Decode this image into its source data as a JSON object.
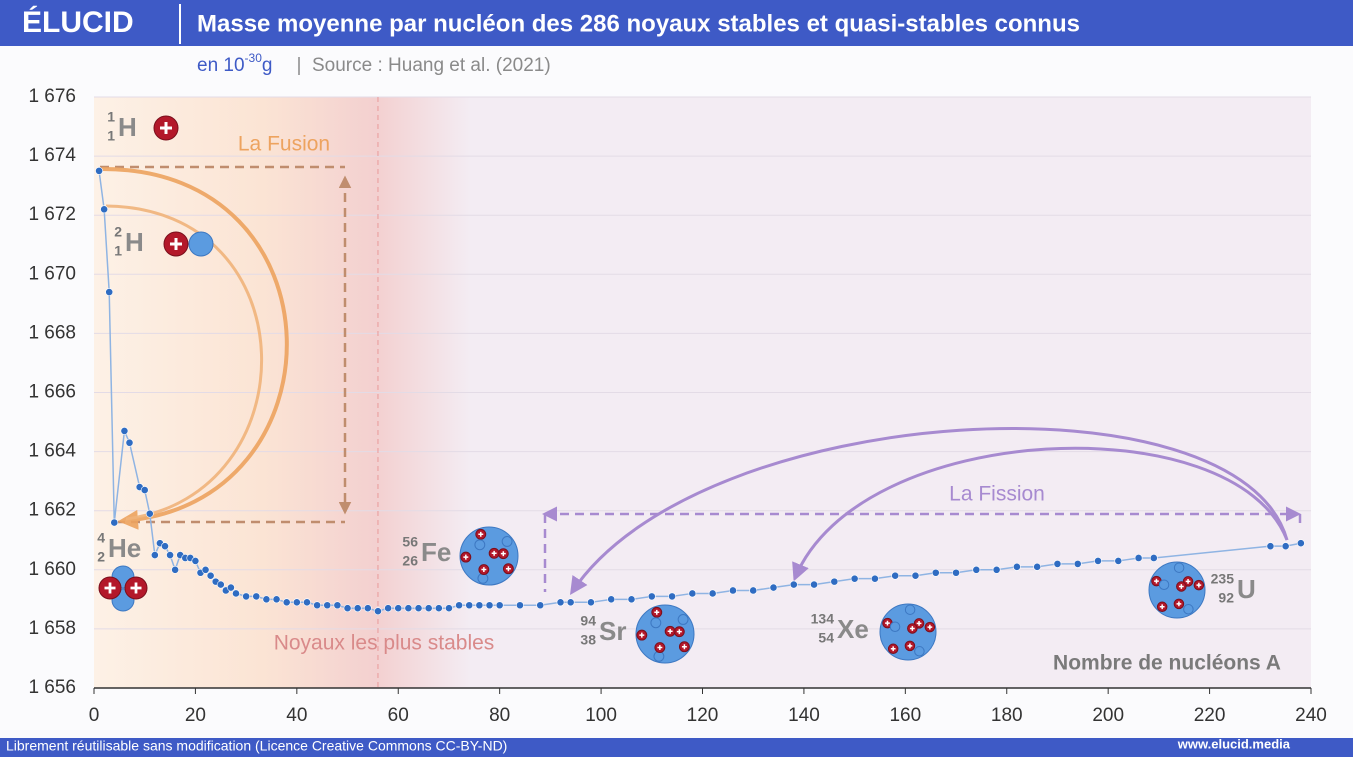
{
  "brand": "ÉLUCID",
  "footer": {
    "license": "Librement réutilisable sans modification (Licence Creative Commons CC-BY-ND)",
    "url": "www.elucid.media"
  },
  "chart_data": {
    "type": "scatter",
    "title": "Masse moyenne par nucléon des 286 noyaux stables et quasi-stables connus",
    "unit": {
      "prefix": "en 10",
      "exponent": "-30",
      "suffix": "g"
    },
    "source": "Source : Huang et al. (2021)",
    "x_label": "Nombre de nucléons A",
    "color": "#2f6cc2",
    "line_color": "#8fb4e3",
    "grid": true,
    "xlim": [
      0,
      240
    ],
    "xticks": [
      0,
      20,
      40,
      60,
      80,
      100,
      120,
      140,
      160,
      180,
      200,
      220,
      240
    ],
    "ylim": [
      1656,
      1676
    ],
    "yticks": [
      {
        "value": 1656,
        "label": "1 656"
      },
      {
        "value": 1658,
        "label": "1 658"
      },
      {
        "value": 1660,
        "label": "1 660"
      },
      {
        "value": 1662,
        "label": "1 662"
      },
      {
        "value": 1664,
        "label": "1 664"
      },
      {
        "value": 1666,
        "label": "1 666"
      },
      {
        "value": 1668,
        "label": "1 668"
      },
      {
        "value": 1670,
        "label": "1 670"
      },
      {
        "value": 1672,
        "label": "1 672"
      },
      {
        "value": 1674,
        "label": "1 674"
      },
      {
        "value": 1676,
        "label": "1 676"
      }
    ],
    "x": [
      1,
      2,
      3,
      4,
      6,
      7,
      9,
      10,
      11,
      12,
      13,
      14,
      15,
      16,
      17,
      18,
      19,
      20,
      21,
      22,
      23,
      24,
      25,
      26,
      27,
      28,
      30,
      32,
      34,
      36,
      38,
      40,
      42,
      44,
      46,
      48,
      50,
      52,
      54,
      56,
      58,
      60,
      62,
      64,
      66,
      68,
      70,
      72,
      74,
      76,
      78,
      80,
      84,
      88,
      92,
      94,
      98,
      102,
      106,
      110,
      114,
      118,
      122,
      126,
      130,
      134,
      138,
      142,
      146,
      150,
      154,
      158,
      162,
      166,
      170,
      174,
      178,
      182,
      186,
      190,
      194,
      198,
      202,
      206,
      209,
      232,
      235,
      238
    ],
    "values": [
      1673.5,
      1672.2,
      1669.4,
      1661.6,
      1664.7,
      1664.3,
      1662.8,
      1662.7,
      1661.9,
      1660.5,
      1660.9,
      1660.8,
      1660.5,
      1660.0,
      1660.5,
      1660.4,
      1660.4,
      1660.3,
      1659.9,
      1660.0,
      1659.8,
      1659.6,
      1659.5,
      1659.3,
      1659.4,
      1659.2,
      1659.1,
      1659.1,
      1659.0,
      1659.0,
      1658.9,
      1658.9,
      1658.9,
      1658.8,
      1658.8,
      1658.8,
      1658.7,
      1658.7,
      1658.7,
      1658.6,
      1658.7,
      1658.7,
      1658.7,
      1658.7,
      1658.7,
      1658.7,
      1658.7,
      1658.8,
      1658.8,
      1658.8,
      1658.8,
      1658.8,
      1658.8,
      1658.8,
      1658.9,
      1658.9,
      1658.9,
      1659.0,
      1659.0,
      1659.1,
      1659.1,
      1659.2,
      1659.2,
      1659.3,
      1659.3,
      1659.4,
      1659.5,
      1659.5,
      1659.6,
      1659.7,
      1659.7,
      1659.8,
      1659.8,
      1659.9,
      1659.9,
      1660.0,
      1660.0,
      1660.1,
      1660.1,
      1660.2,
      1660.2,
      1660.3,
      1660.3,
      1660.4,
      1660.4,
      1660.8,
      1660.8,
      1660.9
    ],
    "annotations": {
      "fusion": "La Fusion",
      "fission": "La Fission",
      "stable": "Noyaux les plus stables"
    },
    "nuclides": [
      {
        "mass": "1",
        "charge": "1",
        "symbol": "H"
      },
      {
        "mass": "2",
        "charge": "1",
        "symbol": "H"
      },
      {
        "mass": "4",
        "charge": "2",
        "symbol": "He"
      },
      {
        "mass": "56",
        "charge": "26",
        "symbol": "Fe"
      },
      {
        "mass": "94",
        "charge": "38",
        "symbol": "Sr"
      },
      {
        "mass": "134",
        "charge": "54",
        "symbol": "Xe"
      },
      {
        "mass": "235",
        "charge": "92",
        "symbol": "U"
      }
    ]
  }
}
